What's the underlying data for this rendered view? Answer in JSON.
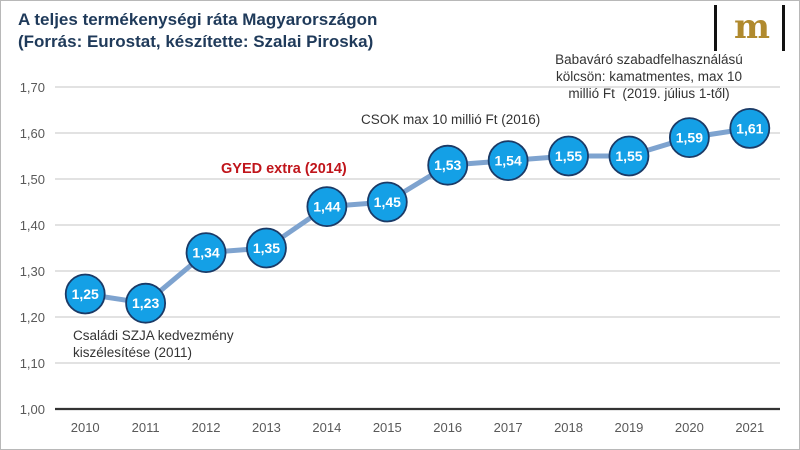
{
  "chart_data": {
    "type": "line",
    "title": "A teljes termékenységi ráta Magyarországon",
    "subtitle": "(Forrás: Eurostat, készítette: Szalai Piroska)",
    "xlabel": "",
    "ylabel": "",
    "categories": [
      "2010",
      "2011",
      "2012",
      "2013",
      "2014",
      "2015",
      "2016",
      "2017",
      "2018",
      "2019",
      "2020",
      "2021"
    ],
    "values": [
      1.25,
      1.23,
      1.34,
      1.35,
      1.44,
      1.45,
      1.53,
      1.54,
      1.55,
      1.55,
      1.59,
      1.61
    ],
    "data_labels": [
      "1,25",
      "1,23",
      "1,34",
      "1,35",
      "1,44",
      "1,45",
      "1,53",
      "1,54",
      "1,55",
      "1,55",
      "1,59",
      "1,61"
    ],
    "ylim": [
      1.0,
      1.7
    ],
    "yticks": [
      1.0,
      1.1,
      1.2,
      1.3,
      1.4,
      1.5,
      1.6,
      1.7
    ],
    "ytick_labels": [
      "1,00",
      "1,10",
      "1,20",
      "1,30",
      "1,40",
      "1,50",
      "1,60",
      "1,70"
    ],
    "grid": true,
    "legend": "none",
    "annotations": [
      {
        "lines": [
          "Családi SZJA kedvezmény",
          "kiszélesítése (2011)"
        ]
      },
      {
        "lines": [
          "GYED extra (2014)"
        ]
      },
      {
        "lines": [
          "CSOK max 10 millió Ft (2016)"
        ]
      },
      {
        "lines": [
          "Babaváró szabadfelhasználású",
          "kölcsön: kamatmentes, max 10",
          "millió Ft  (2019. július 1-től)"
        ]
      }
    ]
  },
  "logo": {
    "letter": "m"
  },
  "colors": {
    "line": "#7ea3cf",
    "marker_fill": "#14a0e6",
    "marker_stroke": "#1b3a66",
    "grid": "#d0d0d0",
    "axis": "#333333",
    "title": "#1f3a5a",
    "highlight": "#c0151b",
    "logo": "#b08a2e"
  }
}
